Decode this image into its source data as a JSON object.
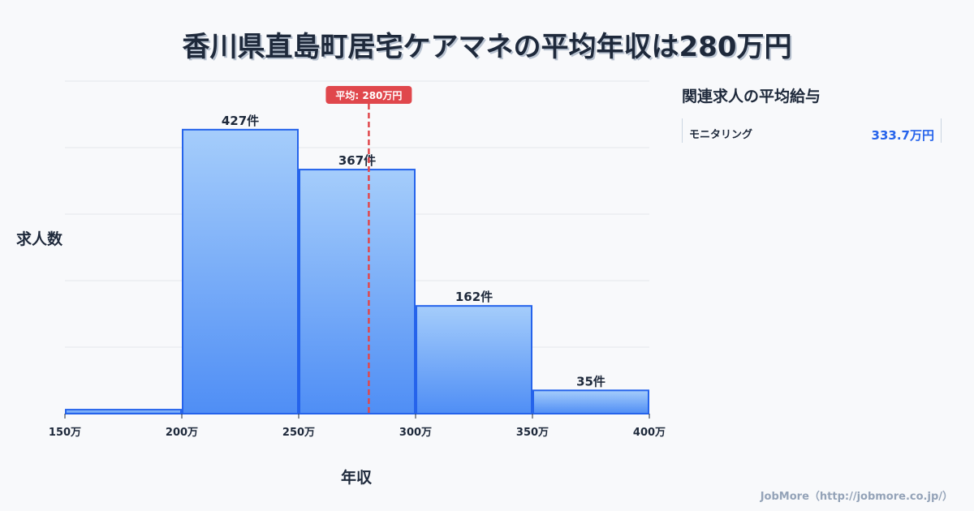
{
  "title": "香川県直島町居宅ケアマネの平均年収は280万円",
  "chart_data": {
    "type": "bar",
    "bins": [
      [
        150,
        200
      ],
      [
        200,
        250
      ],
      [
        250,
        300
      ],
      [
        300,
        350
      ],
      [
        350,
        400
      ]
    ],
    "values": [
      6,
      427,
      367,
      162,
      35
    ],
    "data_labels": [
      "",
      "427件",
      "367件",
      "162件",
      "35件"
    ],
    "tick_labels": [
      "150万",
      "200万",
      "250万",
      "300万",
      "350万",
      "400万"
    ],
    "ticks": [
      150,
      200,
      250,
      300,
      350,
      400
    ],
    "xlim": [
      150,
      400
    ],
    "ylim": [
      0,
      500
    ],
    "xlabel": "年収",
    "ylabel": "求人数",
    "mean": 280,
    "mean_label": "平均: 280万円",
    "grid": true
  },
  "sidebar": {
    "title": "関連求人の平均給与",
    "items": [
      {
        "name": "モニタリング",
        "value": "333.7万円"
      }
    ]
  },
  "footer": "JobMore（http://jobmore.co.jp/）",
  "colors": {
    "bar_top": "#a5cdfb",
    "bar_bottom": "#4f8ef5",
    "bar_stroke": "#2563eb",
    "mean": "#e0474c",
    "value": "#2563eb"
  }
}
